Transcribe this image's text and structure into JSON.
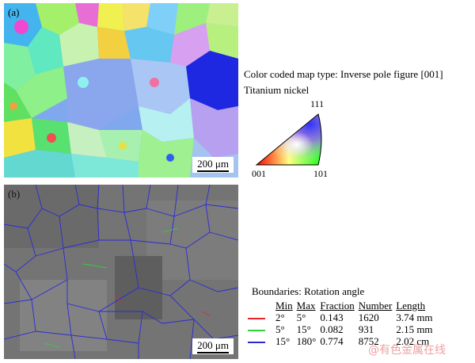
{
  "panel_a": {
    "label": "(a)",
    "scale": "200 μm"
  },
  "panel_b": {
    "label": "(b)",
    "scale": "200 μm"
  },
  "legend": {
    "map_type": "Color coded map type: Inverse pole figure [001]",
    "material": "Titanium nickel",
    "ipf_corners": {
      "top": "111",
      "left": "001",
      "right": "101"
    }
  },
  "boundaries": {
    "title": "Boundaries: Rotation angle",
    "headers": [
      "Min",
      "Max",
      "Fraction",
      "Number",
      "Length"
    ],
    "rows": [
      {
        "color": "#e8242a",
        "min": "2°",
        "max": "5°",
        "fraction": "0.143",
        "number": "1620",
        "length": "3.74 mm"
      },
      {
        "color": "#32d33a",
        "min": "5°",
        "max": "15°",
        "fraction": "0.082",
        "number": "931",
        "length": "2.15 mm"
      },
      {
        "color": "#2a2ad8",
        "min": "15°",
        "max": "180°",
        "fraction": "0.774",
        "number": "8752",
        "length": "2.02 cm"
      }
    ]
  },
  "watermark": "@有色金属在线"
}
